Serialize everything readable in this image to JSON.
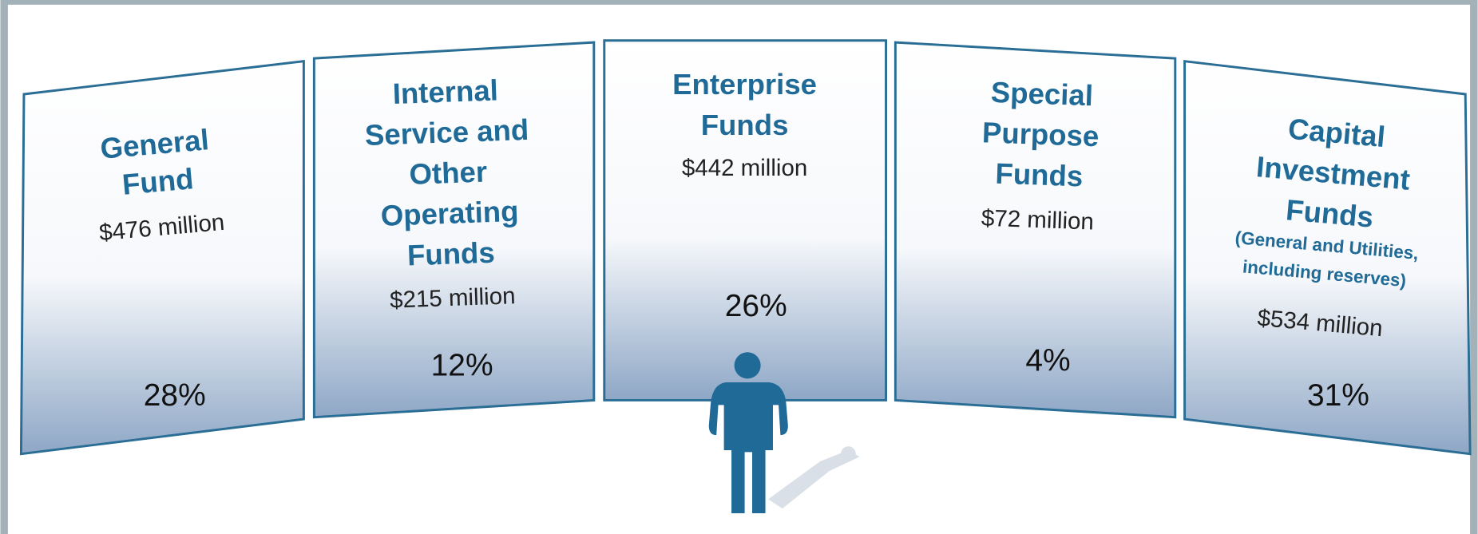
{
  "panels": [
    {
      "title_lines": [
        "General",
        "Fund"
      ],
      "amount": "$476 million",
      "percent": "28%"
    },
    {
      "title_lines": [
        "Internal",
        "Service and",
        "Other",
        "Operating",
        "Funds"
      ],
      "amount": "$215 million",
      "percent": "12%"
    },
    {
      "title_lines": [
        "Enterprise",
        "Funds"
      ],
      "amount": "$442 million",
      "percent": "26%"
    },
    {
      "title_lines": [
        "Special",
        "Purpose",
        "Funds"
      ],
      "amount": "$72 million",
      "percent": "4%"
    },
    {
      "title_lines": [
        "Capital",
        "Investment",
        "Funds"
      ],
      "note_lines": [
        "(General and Utilities,",
        "including reserves)"
      ],
      "amount": "$534 million",
      "percent": "31%"
    }
  ]
}
